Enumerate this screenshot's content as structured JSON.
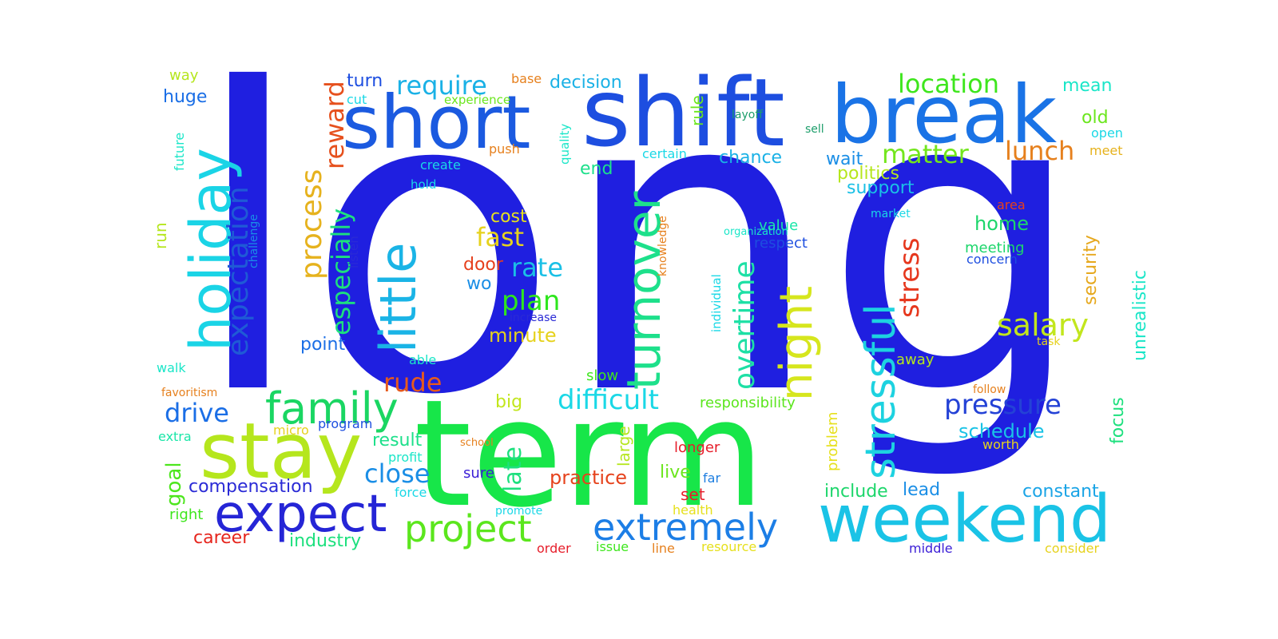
{
  "words": [
    {
      "text": "long",
      "color": "#1f1fe0"
    },
    {
      "text": "term",
      "color": "#17e649"
    },
    {
      "text": "shift",
      "color": "#1d4ee0"
    },
    {
      "text": "break",
      "color": "#1a73e6"
    },
    {
      "text": "short",
      "color": "#1b5ae0"
    },
    {
      "text": "weekend",
      "color": "#1ac3e6"
    },
    {
      "text": "stay",
      "color": "#b5e61d"
    },
    {
      "text": "expect",
      "color": "#2525d6"
    },
    {
      "text": "holiday",
      "color": "#1ad4e6"
    },
    {
      "text": "little",
      "color": "#1ab4e6"
    },
    {
      "text": "turnover",
      "color": "#1de08b"
    },
    {
      "text": "family",
      "color": "#1ad662"
    },
    {
      "text": "project",
      "color": "#5be61d"
    },
    {
      "text": "extremely",
      "color": "#1c7ee6"
    },
    {
      "text": "stressful",
      "color": "#1dd2e0"
    },
    {
      "text": "night",
      "color": "#d6e61d"
    },
    {
      "text": "expectation",
      "color": "#1f5ad6"
    },
    {
      "text": "overtime",
      "color": "#1de0a5"
    },
    {
      "text": "process",
      "color": "#e6b21d"
    },
    {
      "text": "salary",
      "color": "#c2e61d"
    },
    {
      "text": "pressure",
      "color": "#2442d6"
    },
    {
      "text": "difficult",
      "color": "#1ad8e6"
    },
    {
      "text": "location",
      "color": "#3ee61d"
    },
    {
      "text": "require",
      "color": "#1ab1e6"
    },
    {
      "text": "matter",
      "color": "#73e61d"
    },
    {
      "text": "lunch",
      "color": "#e6801d"
    },
    {
      "text": "rate",
      "color": "#1ac0e6"
    },
    {
      "text": "plan",
      "color": "#2ee61d"
    },
    {
      "text": "fast",
      "color": "#e6d21d"
    },
    {
      "text": "especially",
      "color": "#1de07e"
    },
    {
      "text": "reward",
      "color": "#e6501d"
    },
    {
      "text": "stress",
      "color": "#e6371d"
    },
    {
      "text": "close",
      "color": "#1a8ee6"
    },
    {
      "text": "drive",
      "color": "#1a6ee6"
    },
    {
      "text": "rude",
      "color": "#e65a1d"
    },
    {
      "text": "schedule",
      "color": "#1ac3e6"
    },
    {
      "text": "late",
      "color": "#1de07e"
    },
    {
      "text": "practice",
      "color": "#e6431d"
    },
    {
      "text": "compensation",
      "color": "#2a2ad6"
    },
    {
      "text": "goal",
      "color": "#4de61d"
    },
    {
      "text": "industry",
      "color": "#1de07e"
    },
    {
      "text": "career",
      "color": "#e6251d"
    },
    {
      "text": "constant",
      "color": "#1aa4e6"
    },
    {
      "text": "include",
      "color": "#1dd66b"
    },
    {
      "text": "lead",
      "color": "#1a8ee6"
    },
    {
      "text": "minute",
      "color": "#e6d21d"
    },
    {
      "text": "home",
      "color": "#1dd66b"
    },
    {
      "text": "unrealistic",
      "color": "#1ae6c8"
    },
    {
      "text": "security",
      "color": "#e6a81d"
    },
    {
      "text": "focus",
      "color": "#1de07e"
    },
    {
      "text": "point",
      "color": "#1a6ee6"
    },
    {
      "text": "result",
      "color": "#1de08b"
    },
    {
      "text": "politics",
      "color": "#b5e61d"
    },
    {
      "text": "support",
      "color": "#1ac0e6"
    },
    {
      "text": "decision",
      "color": "#1ab1e6"
    },
    {
      "text": "turn",
      "color": "#1d4ee0"
    },
    {
      "text": "huge",
      "color": "#1a6ee6"
    },
    {
      "text": "wait",
      "color": "#1a8ee6"
    },
    {
      "text": "chance",
      "color": "#1ab1e6"
    },
    {
      "text": "end",
      "color": "#1de08b"
    },
    {
      "text": "old",
      "color": "#6be61d"
    },
    {
      "text": "mean",
      "color": "#1ae6c8"
    },
    {
      "text": "cost",
      "color": "#e6e01d"
    },
    {
      "text": "big",
      "color": "#c2e61d"
    },
    {
      "text": "wo",
      "color": "#1a8ee6"
    },
    {
      "text": "door",
      "color": "#e6401d"
    },
    {
      "text": "set",
      "color": "#e61d2a"
    },
    {
      "text": "live",
      "color": "#6be61d"
    },
    {
      "text": "longer",
      "color": "#e61d2a"
    },
    {
      "text": "large",
      "color": "#b5e61d"
    },
    {
      "text": "problem",
      "color": "#e6e01d"
    },
    {
      "text": "rule",
      "color": "#6be61d"
    },
    {
      "text": "walk",
      "color": "#1ae6c8"
    },
    {
      "text": "extra",
      "color": "#1ae6a8"
    },
    {
      "text": "run",
      "color": "#b5e61d"
    },
    {
      "text": "right",
      "color": "#3ee61d"
    },
    {
      "text": "meeting",
      "color": "#1dd66b"
    },
    {
      "text": "concern",
      "color": "#1d4ee0"
    },
    {
      "text": "respect",
      "color": "#1d4ee0"
    },
    {
      "text": "value",
      "color": "#1ae6a8"
    },
    {
      "text": "slow",
      "color": "#3ee61d"
    },
    {
      "text": "away",
      "color": "#b5e61d"
    },
    {
      "text": "responsibility",
      "color": "#5be61d"
    },
    {
      "text": "worth",
      "color": "#e6d21d"
    },
    {
      "text": "sure",
      "color": "#3a1dd6"
    },
    {
      "text": "micro",
      "color": "#e6d21d"
    },
    {
      "text": "program",
      "color": "#1d4ee0"
    },
    {
      "text": "profit",
      "color": "#1ae6c8"
    },
    {
      "text": "force",
      "color": "#1ad8e6"
    },
    {
      "text": "promote",
      "color": "#1ad8e6"
    },
    {
      "text": "health",
      "color": "#e6e01d"
    },
    {
      "text": "resource",
      "color": "#e6e01d"
    },
    {
      "text": "issue",
      "color": "#3ee61d"
    },
    {
      "text": "line",
      "color": "#e6801d"
    },
    {
      "text": "order",
      "color": "#e61d2a"
    },
    {
      "text": "far",
      "color": "#1d7ee0"
    },
    {
      "text": "middle",
      "color": "#3a1dd6"
    },
    {
      "text": "consider",
      "color": "#e6d21d"
    },
    {
      "text": "able",
      "color": "#1ae6c8"
    },
    {
      "text": "favoritism",
      "color": "#e6801d"
    },
    {
      "text": "increase",
      "color": "#2a2ad6"
    },
    {
      "text": "way",
      "color": "#b5e61d"
    },
    {
      "text": "future",
      "color": "#1ae6c8"
    },
    {
      "text": "cut",
      "color": "#1ad8e6"
    },
    {
      "text": "experience",
      "color": "#6be61d"
    },
    {
      "text": "base",
      "color": "#e6801d"
    },
    {
      "text": "push",
      "color": "#e6801d"
    },
    {
      "text": "quality",
      "color": "#1ae6c8"
    },
    {
      "text": "create",
      "color": "#1ad8e6"
    },
    {
      "text": "hold",
      "color": "#1ad8e6"
    },
    {
      "text": "certain",
      "color": "#1ad8e6"
    },
    {
      "text": "layoff",
      "color": "#1d9e6b"
    },
    {
      "text": "sell",
      "color": "#1d9e6b"
    },
    {
      "text": "open",
      "color": "#1ad8e6"
    },
    {
      "text": "meet",
      "color": "#e6b21d"
    },
    {
      "text": "market",
      "color": "#1ad8e6"
    },
    {
      "text": "area",
      "color": "#e6401d"
    },
    {
      "text": "knowledge",
      "color": "#e6801d"
    },
    {
      "text": "organization",
      "color": "#1ae6c8"
    },
    {
      "text": "individual",
      "color": "#1ad8e6"
    },
    {
      "text": "listen",
      "color": "#2a2ad6"
    },
    {
      "text": "challenge",
      "color": "#1a8ee6"
    },
    {
      "text": "task",
      "color": "#e6d21d"
    },
    {
      "text": "follow",
      "color": "#e6801d"
    },
    {
      "text": "school",
      "color": "#e6801d"
    }
  ]
}
